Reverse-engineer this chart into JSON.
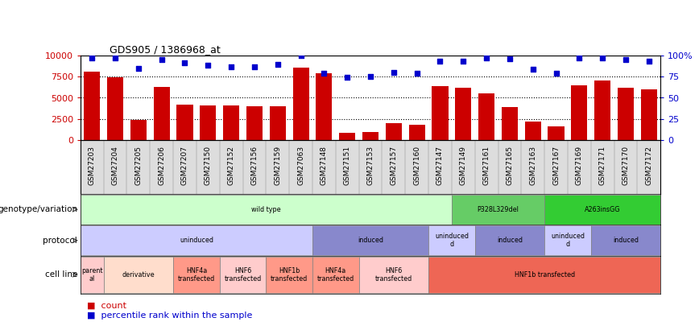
{
  "title": "GDS905 / 1386968_at",
  "samples": [
    "GSM27203",
    "GSM27204",
    "GSM27205",
    "GSM27206",
    "GSM27207",
    "GSM27150",
    "GSM27152",
    "GSM27156",
    "GSM27159",
    "GSM27063",
    "GSM27148",
    "GSM27151",
    "GSM27153",
    "GSM27157",
    "GSM27160",
    "GSM27147",
    "GSM27149",
    "GSM27161",
    "GSM27165",
    "GSM27163",
    "GSM27167",
    "GSM27169",
    "GSM27171",
    "GSM27170",
    "GSM27172"
  ],
  "counts": [
    8100,
    7400,
    2400,
    6300,
    4200,
    4100,
    4100,
    4000,
    4000,
    8600,
    7900,
    900,
    1000,
    2000,
    1800,
    6400,
    6200,
    5500,
    3900,
    2200,
    1600,
    6500,
    7000,
    6200,
    6000
  ],
  "percentile": [
    97,
    97,
    85,
    95,
    91,
    88,
    87,
    87,
    89,
    100,
    79,
    74,
    75,
    80,
    79,
    93,
    93,
    97,
    96,
    84,
    79,
    97,
    97,
    95,
    93
  ],
  "bar_color": "#cc0000",
  "dot_color": "#0000cc",
  "ylim_left": [
    0,
    10000
  ],
  "ylim_right": [
    0,
    100
  ],
  "yticks_left": [
    0,
    2500,
    5000,
    7500,
    10000
  ],
  "ytick_labels_left": [
    "0",
    "2500",
    "5000",
    "7500",
    "10000"
  ],
  "yticks_right": [
    0,
    25,
    50,
    75,
    100
  ],
  "ytick_labels_right": [
    "0",
    "25",
    "50",
    "75",
    "100%"
  ],
  "grid_values": [
    2500,
    5000,
    7500
  ],
  "genotype_row": [
    {
      "label": "wild type",
      "start": 0,
      "end": 16,
      "color": "#ccffcc"
    },
    {
      "label": "P328L329del",
      "start": 16,
      "end": 20,
      "color": "#66cc66"
    },
    {
      "label": "A263insGG",
      "start": 20,
      "end": 25,
      "color": "#33cc33"
    }
  ],
  "protocol_row": [
    {
      "label": "uninduced",
      "start": 0,
      "end": 10,
      "color": "#ccccff"
    },
    {
      "label": "induced",
      "start": 10,
      "end": 15,
      "color": "#8888cc"
    },
    {
      "label": "uninduced\nd",
      "start": 15,
      "end": 17,
      "color": "#ccccff"
    },
    {
      "label": "induced",
      "start": 17,
      "end": 20,
      "color": "#8888cc"
    },
    {
      "label": "uninduced\nd",
      "start": 20,
      "end": 22,
      "color": "#ccccff"
    },
    {
      "label": "induced",
      "start": 22,
      "end": 25,
      "color": "#8888cc"
    }
  ],
  "cell_row": [
    {
      "label": "parent\nal",
      "start": 0,
      "end": 1,
      "color": "#ffcccc"
    },
    {
      "label": "derivative",
      "start": 1,
      "end": 4,
      "color": "#ffddcc"
    },
    {
      "label": "HNF4a\ntransfected",
      "start": 4,
      "end": 6,
      "color": "#ff9988"
    },
    {
      "label": "HNF6\ntransfected",
      "start": 6,
      "end": 8,
      "color": "#ffcccc"
    },
    {
      "label": "HNF1b\ntransfected",
      "start": 8,
      "end": 10,
      "color": "#ff9988"
    },
    {
      "label": "HNF4a\ntransfected",
      "start": 10,
      "end": 12,
      "color": "#ff9988"
    },
    {
      "label": "HNF6\ntransfected",
      "start": 12,
      "end": 15,
      "color": "#ffcccc"
    },
    {
      "label": "HNF1b transfected",
      "start": 15,
      "end": 25,
      "color": "#ee6655"
    }
  ],
  "bg_color": "#ffffff",
  "xtick_bg": "#dddddd"
}
